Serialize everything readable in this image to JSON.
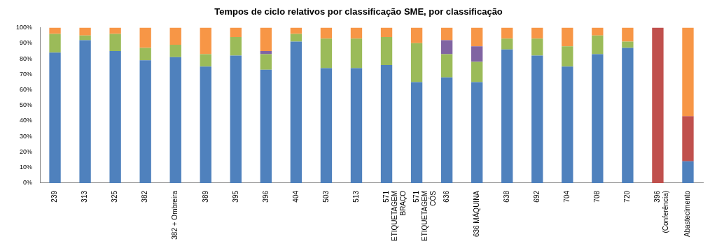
{
  "chart_data": {
    "type": "bar",
    "title": "Tempos de ciclo relativos por classificação SME, por classificação",
    "categories": [
      "239",
      "313",
      "325",
      "382",
      "382 + Ombreira",
      "389",
      "395",
      "396",
      "404",
      "503",
      "513",
      "571 ETIQUETAGEM BRAÇO",
      "571 ETIQUETAGEM CÓS",
      "636",
      "636 MÁQUINA",
      "638",
      "692",
      "704",
      "708",
      "720",
      "396 (Conferência)",
      "Abastecimento"
    ],
    "series": [
      {
        "color": "#4f81bd",
        "values": [
          84,
          92,
          85,
          79,
          81,
          75,
          82,
          73,
          91,
          74,
          74,
          76,
          65,
          68,
          65,
          86,
          82,
          75,
          83,
          87,
          0,
          14
        ]
      },
      {
        "color": "#c0504d",
        "values": [
          0,
          0,
          0,
          0,
          0,
          0,
          0,
          0,
          0,
          0,
          0,
          0,
          0,
          0,
          0,
          0,
          0,
          0,
          0,
          0,
          100,
          29
        ]
      },
      {
        "color": "#9bbb59",
        "values": [
          12,
          3,
          11,
          8,
          8,
          8,
          12,
          10,
          5,
          19,
          19,
          18,
          25,
          15,
          13,
          7,
          11,
          13,
          12,
          4,
          0,
          0
        ]
      },
      {
        "color": "#8064a2",
        "values": [
          0,
          0,
          0,
          0,
          0,
          0,
          0,
          2,
          0,
          0,
          0,
          0,
          0,
          9,
          10,
          0,
          0,
          0,
          0,
          0,
          0,
          0
        ]
      },
      {
        "color": "#f79646",
        "values": [
          4,
          5,
          4,
          13,
          11,
          17,
          6,
          15,
          4,
          7,
          7,
          6,
          10,
          8,
          12,
          7,
          7,
          12,
          5,
          9,
          0,
          57
        ]
      }
    ],
    "stacked": true,
    "grid": false,
    "ylim": [
      0,
      100
    ],
    "yticks": [
      {
        "value": 0,
        "label": "0%"
      },
      {
        "value": 10,
        "label": "10%"
      },
      {
        "value": 20,
        "label": "20%"
      },
      {
        "value": 30,
        "label": "30%"
      },
      {
        "value": 40,
        "label": "40%"
      },
      {
        "value": 50,
        "label": "50%"
      },
      {
        "value": 60,
        "label": "60%"
      },
      {
        "value": 70,
        "label": "70%"
      },
      {
        "value": 80,
        "label": "80%"
      },
      {
        "value": 90,
        "label": "90%"
      },
      {
        "value": 100,
        "label": "100%"
      }
    ]
  }
}
